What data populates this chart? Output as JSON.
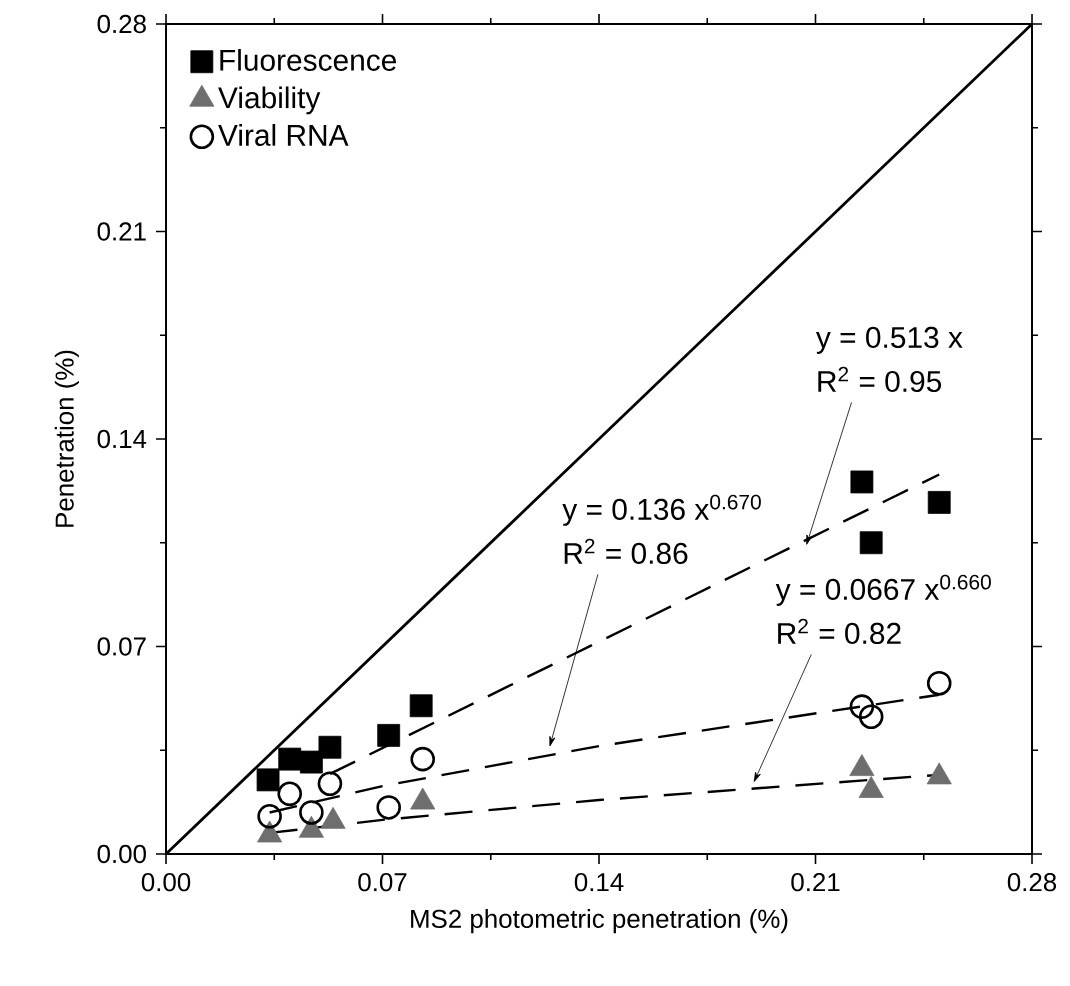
{
  "chart_data": {
    "type": "scatter",
    "xlabel": "MS2 photometric penetration (%)",
    "ylabel": "Penetration (%)",
    "xlim": [
      0,
      0.28
    ],
    "ylim": [
      0,
      0.28
    ],
    "xticks": [
      {
        "value": 0,
        "label": "0.00"
      },
      {
        "value": 0.07,
        "label": "0.07"
      },
      {
        "value": 0.14,
        "label": "0.14"
      },
      {
        "value": 0.21,
        "label": "0.21"
      },
      {
        "value": 0.28,
        "label": "0.28"
      }
    ],
    "yticks": [
      {
        "value": 0,
        "label": "0.00"
      },
      {
        "value": 0.07,
        "label": "0.07"
      },
      {
        "value": 0.14,
        "label": "0.14"
      },
      {
        "value": 0.21,
        "label": "0.21"
      },
      {
        "value": 0.28,
        "label": "0.28"
      }
    ],
    "legend": "top left",
    "grid": false,
    "series": [
      {
        "name": "Fluorescence",
        "marker": "square",
        "color": "#000000",
        "x": [
          0.033,
          0.04,
          0.047,
          0.053,
          0.072,
          0.0825,
          0.225,
          0.228,
          0.25
        ],
        "values": [
          0.025,
          0.032,
          0.031,
          0.036,
          0.04,
          0.05,
          0.1255,
          0.105,
          0.1186
        ]
      },
      {
        "name": "Viability",
        "marker": "triangle",
        "color": "#6e6e6e",
        "x": [
          0.0335,
          0.047,
          0.054,
          0.083,
          0.225,
          0.228,
          0.25
        ],
        "values": [
          0.0064,
          0.008,
          0.011,
          0.0175,
          0.0288,
          0.0214,
          0.026
        ]
      },
      {
        "name": "Viral RNA",
        "marker": "circle",
        "color": "#000000",
        "x": [
          0.0335,
          0.04,
          0.047,
          0.053,
          0.072,
          0.083,
          0.225,
          0.228,
          0.25
        ],
        "values": [
          0.0127,
          0.0203,
          0.014,
          0.0237,
          0.0157,
          0.032,
          0.0497,
          0.0463,
          0.0576
        ]
      },
      {
        "type": "line",
        "line_style": "solid",
        "color": "#000000",
        "x": [
          0,
          0.28
        ],
        "values": [
          0,
          0.28
        ]
      },
      {
        "type": "line",
        "line_style": "dashed",
        "color": "#000000",
        "x": [
          0.053,
          0.25
        ],
        "values": [
          0.027,
          0.128
        ]
      },
      {
        "type": "line",
        "line_style": "dashed",
        "color": "#000000",
        "x": [
          0.0335,
          0.07,
          0.14,
          0.25
        ],
        "values": [
          0.014,
          0.0229,
          0.0364,
          0.0537
        ]
      },
      {
        "type": "line",
        "line_style": "dashed",
        "color": "#000000",
        "x": [
          0.0335,
          0.07,
          0.14,
          0.25
        ],
        "values": [
          0.0071,
          0.0115,
          0.0182,
          0.0267
        ]
      }
    ],
    "annotations": [
      "y = 0.513 x",
      {
        "text": "R$^{2}$ = 0.95",
        "x": 0.207,
        "y": 0.104
      },
      "y = 0.136 x$^{0.670}$",
      {
        "text": "R$^{2}$ = 0.86",
        "x": 0.124,
        "y": 0.036
      },
      "y = 0.0667 x$^{0.660}$",
      {
        "text": "R$^{2}$ = 0.82",
        "x": 0.19,
        "y": 0.024
      }
    ]
  }
}
